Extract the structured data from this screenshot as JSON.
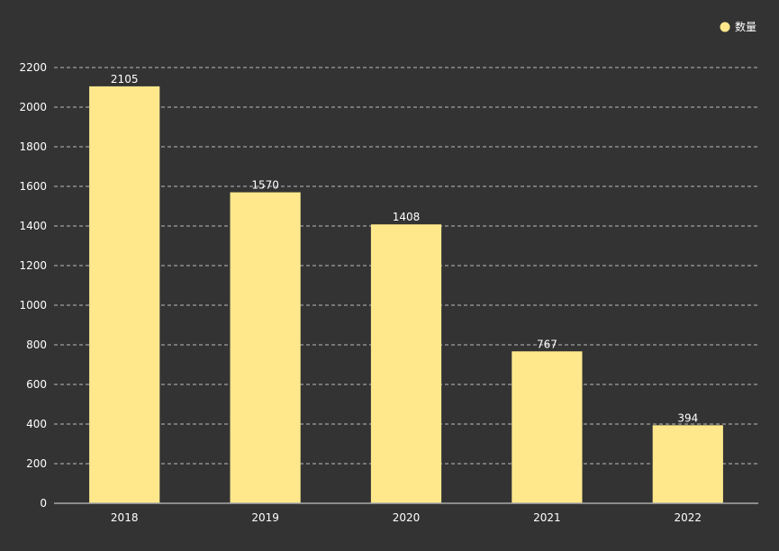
{
  "chart_data": {
    "type": "bar",
    "categories": [
      "2018",
      "2019",
      "2020",
      "2021",
      "2022"
    ],
    "series": [
      {
        "name": "数量",
        "values": [
          2105,
          1570,
          1408,
          767,
          394
        ],
        "color": "#FFE88C"
      }
    ],
    "ylim": [
      0,
      2200
    ],
    "yticks": [
      0,
      200,
      400,
      600,
      800,
      1000,
      1200,
      1400,
      1600,
      1800,
      2000,
      2200
    ],
    "grid": true,
    "legend": {
      "position": "top-right"
    },
    "data_labels": true
  },
  "colors": {
    "background": "#333333",
    "text": "#ffffff",
    "bar": "#FFE88C"
  }
}
